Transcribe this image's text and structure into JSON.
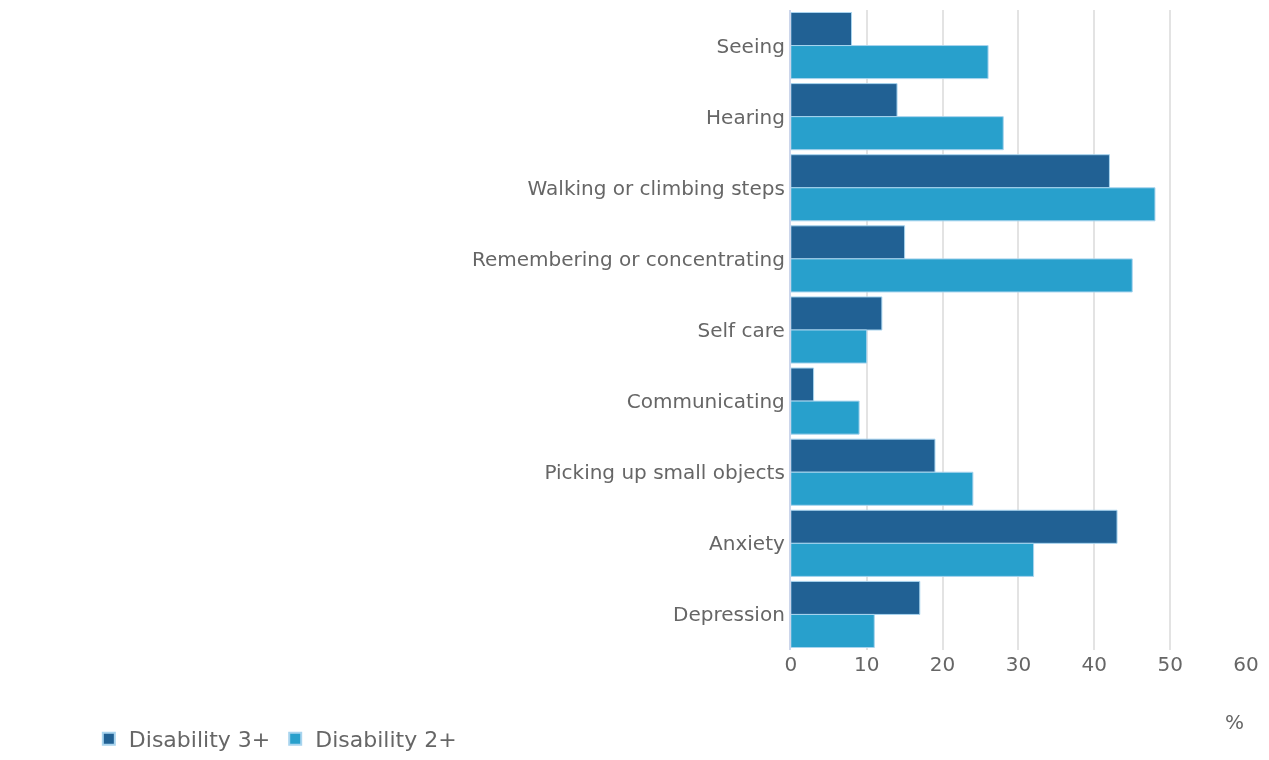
{
  "chart_data": {
    "type": "bar",
    "orientation": "horizontal",
    "xlabel": "%",
    "categories": [
      "Seeing",
      "Hearing",
      "Walking or climbing steps",
      "Remembering or concentrating",
      "Self care",
      "Communicating",
      "Picking up small objects",
      "Anxiety",
      "Depression"
    ],
    "series": [
      {
        "name": "Disability 3+",
        "color": "#216194",
        "values": [
          8,
          14,
          42,
          15,
          12,
          3,
          19,
          43,
          17
        ]
      },
      {
        "name": "Disability 2+",
        "color": "#28a0cc",
        "values": [
          26,
          28,
          48,
          45,
          10,
          9,
          24,
          32,
          11
        ]
      }
    ],
    "xlim": [
      0,
      60
    ],
    "xticks": [
      0,
      10,
      20,
      30,
      40,
      50,
      60
    ],
    "grid": "x",
    "legend": "bottom left"
  }
}
